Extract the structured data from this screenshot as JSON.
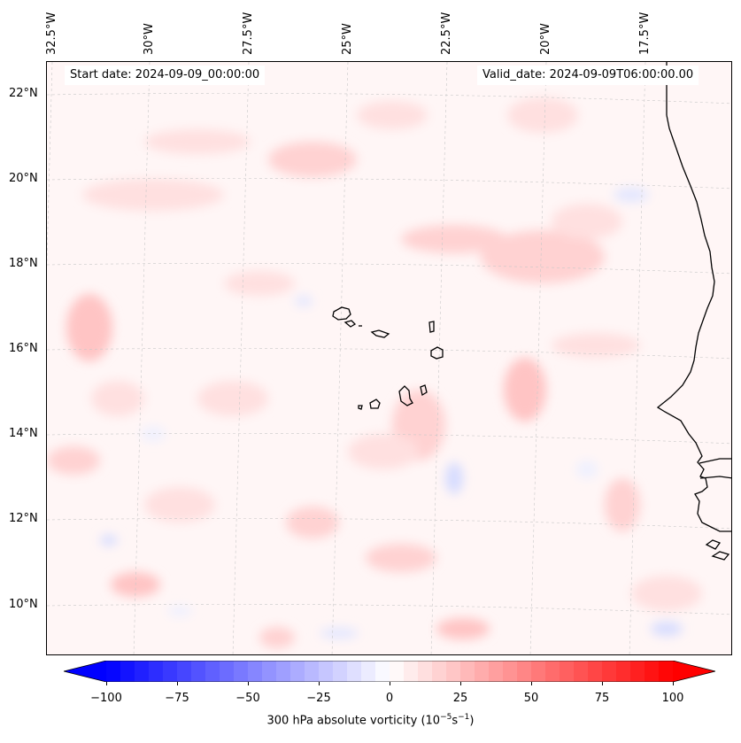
{
  "map": {
    "header": {
      "start_date": "Start date: 2024-09-09_00:00:00",
      "valid_date": "Valid_date: 2024-09-09T06:00:00.00"
    },
    "longitude_labels": [
      "32.5°W",
      "30°W",
      "27.5°W",
      "25°W",
      "22.5°W",
      "20°W",
      "17.5°W"
    ],
    "latitude_labels": [
      "22°N",
      "20°N",
      "18°N",
      "16°N",
      "14°N",
      "12°N",
      "10°N"
    ],
    "field": "300 hPa absolute vorticity",
    "colormap": {
      "low": "#0000ff",
      "mid": "#ffffff",
      "high": "#ff0000"
    },
    "coastline_color": "#000000",
    "gridline_color": "#c8c8c8"
  },
  "colorbar": {
    "label_html_text": "300 hPa absolute vorticity (10",
    "label_exp1": "−5",
    "label_mid": "s",
    "label_exp2": "−1",
    "label_end": ")",
    "range": [
      -100,
      100
    ],
    "ticks": [
      "−100",
      "−75",
      "−50",
      "−25",
      "0",
      "25",
      "50",
      "75",
      "100"
    ],
    "tick_values": [
      -100,
      -75,
      -50,
      -25,
      0,
      25,
      50,
      75,
      100
    ]
  }
}
